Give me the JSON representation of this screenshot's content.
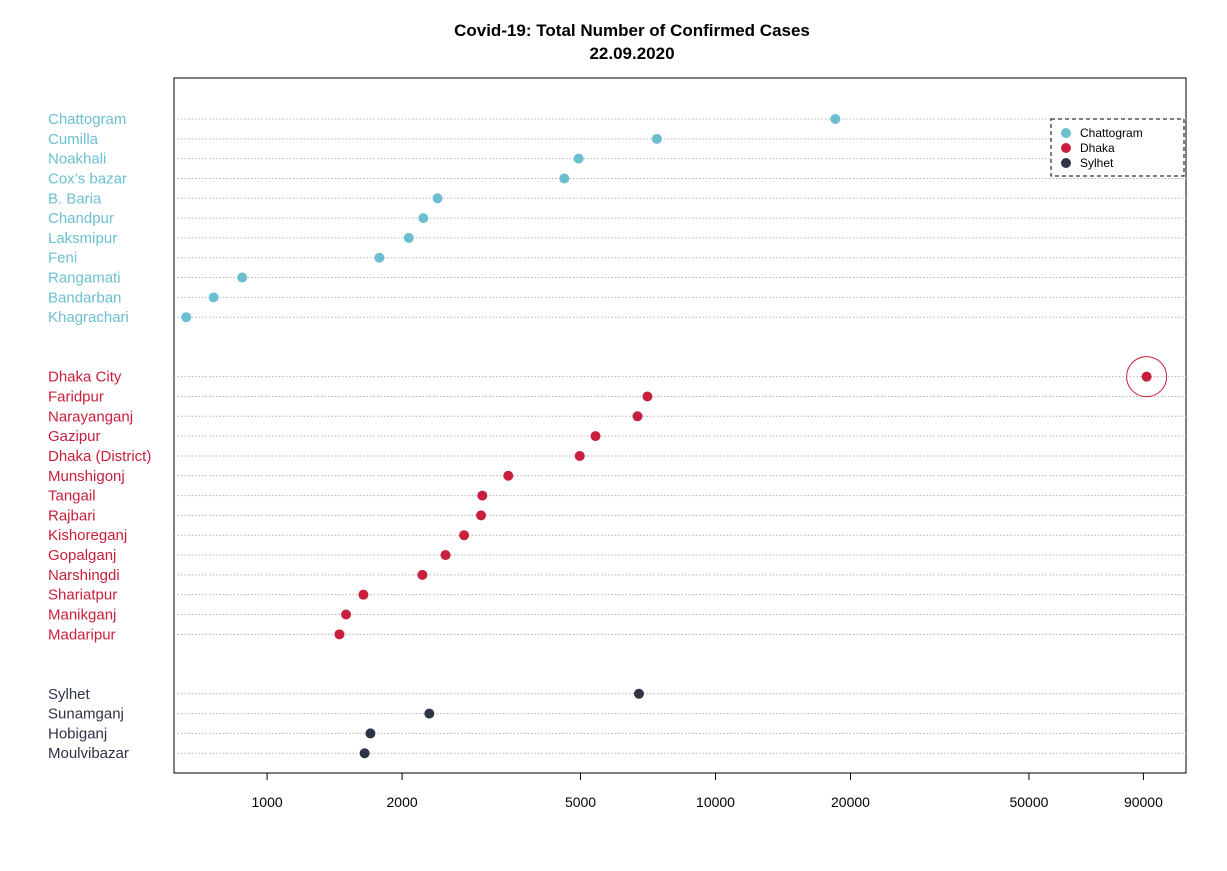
{
  "chart_data": {
    "type": "scatter",
    "subtype": "dot-plot",
    "title": "Covid-19: Total Number of Confirmed Cases",
    "subtitle": "22.09.2020",
    "xscale": "log",
    "xlim": [
      620,
      112000
    ],
    "xticks": [
      1000,
      2000,
      5000,
      10000,
      20000,
      50000,
      90000
    ],
    "xtick_labels": [
      "1000",
      "2000",
      "5000",
      "10000",
      "20000",
      "50000",
      "90000"
    ],
    "grid": "horizontal dotted",
    "legend_position": "top-right",
    "groups": [
      {
        "name": "Chattogram",
        "color": "#6cbfd0",
        "points": [
          {
            "label": "Chattogram",
            "value": 18500
          },
          {
            "label": "Cumilla",
            "value": 7400
          },
          {
            "label": "Noakhali",
            "value": 4950
          },
          {
            "label": "Cox’s bazar",
            "value": 4600
          },
          {
            "label": "B. Baria",
            "value": 2400
          },
          {
            "label": "Chandpur",
            "value": 2230
          },
          {
            "label": "Laksmipur",
            "value": 2070
          },
          {
            "label": "Feni",
            "value": 1780
          },
          {
            "label": "Rangamati",
            "value": 880
          },
          {
            "label": "Bandarban",
            "value": 760
          },
          {
            "label": "Khagrachari",
            "value": 660
          }
        ]
      },
      {
        "name": "Dhaka",
        "color": "#c8203c",
        "points": [
          {
            "label": "Dhaka City",
            "value": 91500,
            "highlight": true
          },
          {
            "label": "Faridpur",
            "value": 7050
          },
          {
            "label": "Narayanganj",
            "value": 6700
          },
          {
            "label": "Gazipur",
            "value": 5400
          },
          {
            "label": "Dhaka (District)",
            "value": 4980
          },
          {
            "label": "Munshigonj",
            "value": 3450
          },
          {
            "label": "Tangail",
            "value": 3020
          },
          {
            "label": "Rajbari",
            "value": 3000
          },
          {
            "label": "Kishoreganj",
            "value": 2750
          },
          {
            "label": "Gopalganj",
            "value": 2500
          },
          {
            "label": "Narshingdi",
            "value": 2220
          },
          {
            "label": "Shariatpur",
            "value": 1640
          },
          {
            "label": "Manikganj",
            "value": 1500
          },
          {
            "label": "Madaripur",
            "value": 1450
          }
        ]
      },
      {
        "name": "Sylhet",
        "color": "#2e3346",
        "points": [
          {
            "label": "Sylhet",
            "value": 6750
          },
          {
            "label": "Sunamganj",
            "value": 2300
          },
          {
            "label": "Hobiganj",
            "value": 1700
          },
          {
            "label": "Moulvibazar",
            "value": 1650
          }
        ]
      }
    ],
    "legend": [
      {
        "label": "Chattogram",
        "color": "#6cbfd0"
      },
      {
        "label": "Dhaka",
        "color": "#c8203c"
      },
      {
        "label": "Sylhet",
        "color": "#2e3346"
      }
    ]
  }
}
